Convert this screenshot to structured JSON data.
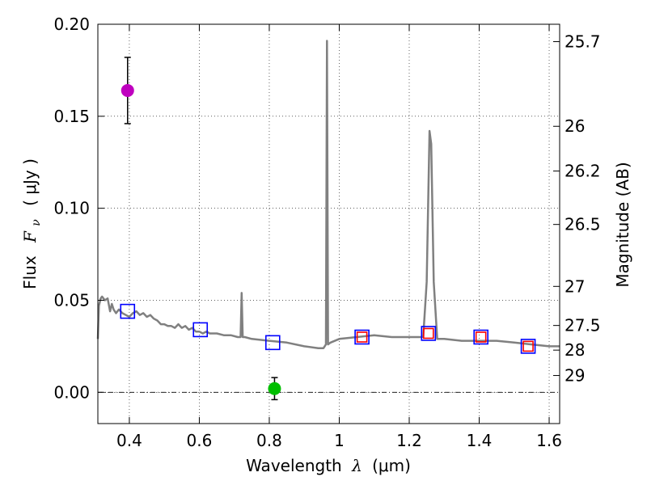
{
  "chart_data": {
    "type": "line",
    "title": "",
    "xlabel": "Wavelength",
    "xlabel_symbol": "λ",
    "xlabel_unit": "(μm)",
    "ylabel": "Flux",
    "ylabel_symbol": "F",
    "ylabel_subscript": "ν",
    "ylabel_unit": "( μJy )",
    "y2label": "Magnitude (AB)",
    "xlim": [
      0.31,
      1.63
    ],
    "ylim": [
      -0.017,
      0.2
    ],
    "grid": true,
    "xticks": [
      "0.4",
      "0.6",
      "0.8",
      "1",
      "1.2",
      "1.4",
      "1.6"
    ],
    "xtick_values": [
      0.4,
      0.6,
      0.8,
      1.0,
      1.2,
      1.4,
      1.6
    ],
    "yticks": [
      "0.00",
      "0.05",
      "0.10",
      "0.15",
      "0.20"
    ],
    "ytick_values": [
      0.0,
      0.05,
      0.1,
      0.15,
      0.2
    ],
    "y2ticks": [
      "25.7",
      "26",
      "26.2",
      "26.5",
      "27",
      "27.5",
      "28",
      "29"
    ],
    "zero_line": 0.0,
    "series": [
      {
        "name": "model spectrum",
        "kind": "line",
        "color": "#808080",
        "x": [
          0.31,
          0.313,
          0.318,
          0.322,
          0.33,
          0.338,
          0.345,
          0.35,
          0.355,
          0.362,
          0.37,
          0.38,
          0.39,
          0.4,
          0.41,
          0.42,
          0.43,
          0.44,
          0.45,
          0.46,
          0.47,
          0.48,
          0.49,
          0.5,
          0.51,
          0.52,
          0.53,
          0.54,
          0.55,
          0.56,
          0.57,
          0.58,
          0.59,
          0.6,
          0.61,
          0.62,
          0.63,
          0.65,
          0.67,
          0.69,
          0.71,
          0.718,
          0.721,
          0.724,
          0.73,
          0.75,
          0.8,
          0.85,
          0.9,
          0.94,
          0.955,
          0.962,
          0.965,
          0.968,
          0.975,
          1.0,
          1.05,
          1.1,
          1.15,
          1.2,
          1.24,
          1.25,
          1.258,
          1.263,
          1.27,
          1.28,
          1.3,
          1.35,
          1.4,
          1.45,
          1.5,
          1.55,
          1.6,
          1.63
        ],
        "y": [
          0.029,
          0.047,
          0.051,
          0.052,
          0.05,
          0.051,
          0.044,
          0.048,
          0.045,
          0.043,
          0.045,
          0.043,
          0.042,
          0.041,
          0.043,
          0.044,
          0.042,
          0.043,
          0.041,
          0.042,
          0.04,
          0.039,
          0.037,
          0.037,
          0.036,
          0.036,
          0.035,
          0.037,
          0.035,
          0.036,
          0.034,
          0.035,
          0.033,
          0.033,
          0.032,
          0.033,
          0.032,
          0.032,
          0.031,
          0.031,
          0.03,
          0.03,
          0.054,
          0.03,
          0.03,
          0.029,
          0.028,
          0.027,
          0.025,
          0.024,
          0.024,
          0.026,
          0.191,
          0.026,
          0.027,
          0.029,
          0.03,
          0.031,
          0.03,
          0.03,
          0.03,
          0.06,
          0.142,
          0.135,
          0.06,
          0.029,
          0.029,
          0.028,
          0.028,
          0.028,
          0.027,
          0.026,
          0.025,
          0.025
        ]
      },
      {
        "name": "model photometry",
        "kind": "open-square",
        "color": "#0000ff",
        "x": [
          0.395,
          0.603,
          0.81,
          1.065,
          1.255,
          1.405,
          1.54
        ],
        "y": [
          0.044,
          0.034,
          0.027,
          0.03,
          0.032,
          0.03,
          0.025
        ]
      },
      {
        "name": "observed photometry",
        "kind": "small-open-square",
        "color": "#ff0000",
        "x": [
          1.065,
          1.255,
          1.405,
          1.54
        ],
        "y": [
          0.03,
          0.032,
          0.03,
          0.025
        ]
      },
      {
        "name": "detection",
        "kind": "point-errorbar",
        "color": "#bf00bf",
        "x": [
          0.395
        ],
        "y": [
          0.164
        ],
        "yerr": [
          0.018
        ]
      },
      {
        "name": "non-detection",
        "kind": "point-errorbar",
        "color": "#00bf00",
        "x": [
          0.815
        ],
        "y": [
          0.002
        ],
        "yerr": [
          0.006
        ]
      }
    ]
  }
}
